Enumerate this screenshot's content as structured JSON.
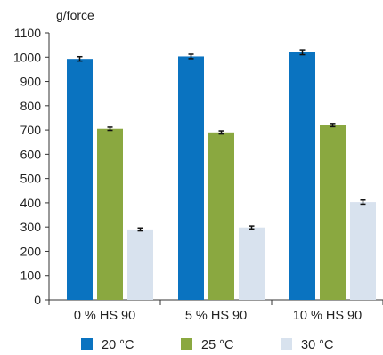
{
  "chart_data": {
    "type": "bar",
    "ylabel": "g/force",
    "categories": [
      "0 % HS 90",
      "5 % HS 90",
      "10 % HS 90"
    ],
    "ylim": [
      0,
      1100
    ],
    "yticks": [
      0,
      100,
      200,
      300,
      400,
      500,
      600,
      700,
      800,
      900,
      1000,
      1100
    ],
    "grid": false,
    "legend_position": "bottom",
    "series": [
      {
        "name": "20 °C",
        "color": "#0a73c0",
        "values": [
          993,
          1003,
          1020
        ],
        "errors": [
          18,
          18,
          20
        ]
      },
      {
        "name": "25 °C",
        "color": "#8aa840",
        "values": [
          705,
          690,
          720
        ],
        "errors": [
          13,
          13,
          13
        ]
      },
      {
        "name": "30 °C",
        "color": "#d8e2ee",
        "values": [
          290,
          298,
          403
        ],
        "errors": [
          12,
          12,
          17
        ]
      }
    ]
  }
}
